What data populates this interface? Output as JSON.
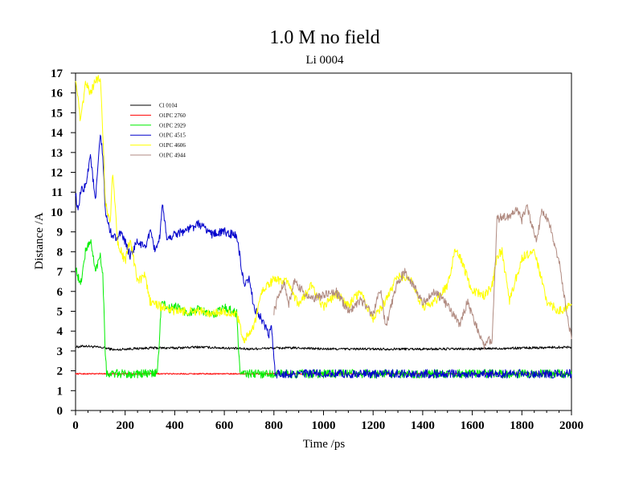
{
  "chart_data": {
    "type": "line",
    "title": "1.0 M no field",
    "subtitle": "Li 0004",
    "xlabel": "Time /ps",
    "ylabel": "Distance /A",
    "xlim": [
      0,
      2000
    ],
    "ylim": [
      0,
      17
    ],
    "x_ticks": [
      "0",
      "200",
      "400",
      "600",
      "800",
      "1000",
      "1200",
      "1400",
      "1600",
      "1800",
      "2000"
    ],
    "y_ticks": [
      "0",
      "1",
      "2",
      "3",
      "4",
      "5",
      "6",
      "7",
      "8",
      "9",
      "10",
      "11",
      "12",
      "13",
      "14",
      "15",
      "16",
      "17"
    ],
    "legend_position": "top-left",
    "series": [
      {
        "name": "Cl 0104",
        "color": "#000000",
        "x": [
          0,
          40,
          80,
          120,
          160,
          200,
          300,
          400,
          500,
          600,
          700,
          800,
          900,
          1000,
          1200,
          1400,
          1600,
          1800,
          2000
        ],
        "y": [
          3.2,
          3.25,
          3.2,
          3.15,
          3.05,
          3.1,
          3.15,
          3.15,
          3.2,
          3.15,
          3.1,
          3.15,
          3.15,
          3.1,
          3.1,
          3.1,
          3.1,
          3.15,
          3.2
        ]
      },
      {
        "name": "O1PC 2760",
        "color": "#ff0000",
        "x": [
          0,
          400,
          800,
          1200,
          1600,
          2000
        ],
        "y": [
          1.85,
          1.85,
          1.85,
          1.85,
          1.85,
          1.85
        ]
      },
      {
        "name": "O1PC 2929",
        "color": "#00ee00",
        "x": [
          0,
          20,
          40,
          60,
          80,
          100,
          110,
          120,
          125,
          130,
          200,
          300,
          330,
          340,
          345,
          350,
          380,
          400,
          450,
          500,
          550,
          600,
          650,
          660,
          665,
          670,
          700,
          750,
          800,
          1000,
          1400,
          2000
        ],
        "y": [
          7.2,
          6.3,
          8.0,
          8.6,
          7.0,
          7.9,
          6.8,
          3.0,
          1.9,
          1.85,
          1.85,
          1.85,
          1.9,
          4.0,
          5.3,
          5.4,
          5.1,
          5.3,
          4.9,
          5.1,
          4.8,
          5.2,
          4.9,
          2.5,
          1.9,
          1.85,
          1.85,
          1.85,
          1.85,
          1.85,
          1.85,
          1.85
        ]
      },
      {
        "name": "O1PC 4515",
        "color": "#0000cc",
        "x": [
          0,
          10,
          20,
          40,
          60,
          80,
          100,
          110,
          120,
          140,
          160,
          180,
          200,
          220,
          250,
          280,
          300,
          320,
          340,
          350,
          370,
          400,
          450,
          500,
          550,
          600,
          650,
          660,
          680,
          700,
          720,
          750,
          780,
          790,
          800,
          805,
          810,
          850,
          1000,
          1400,
          1800,
          2000
        ],
        "y": [
          11.0,
          9.9,
          11.0,
          11.3,
          12.9,
          10.5,
          13.9,
          12.8,
          10.0,
          9.0,
          8.7,
          8.9,
          8.5,
          7.8,
          8.5,
          8.2,
          9.0,
          8.1,
          8.7,
          10.3,
          8.6,
          8.9,
          9.1,
          9.4,
          8.9,
          9.0,
          8.8,
          8.0,
          6.2,
          6.6,
          5.2,
          4.6,
          3.8,
          4.3,
          2.5,
          1.85,
          1.85,
          1.85,
          1.85,
          1.85,
          1.85,
          1.85
        ]
      },
      {
        "name": "O1PC 4606",
        "color": "#ffff00",
        "x": [
          0,
          20,
          40,
          60,
          80,
          100,
          110,
          120,
          140,
          150,
          170,
          200,
          220,
          250,
          280,
          300,
          350,
          400,
          450,
          500,
          550,
          600,
          650,
          680,
          700,
          720,
          750,
          800,
          850,
          900,
          950,
          1000,
          1050,
          1100,
          1150,
          1200,
          1250,
          1300,
          1350,
          1400,
          1450,
          1500,
          1530,
          1550,
          1600,
          1650,
          1680,
          1700,
          1720,
          1750,
          1800,
          1850,
          1900,
          1950,
          2000
        ],
        "y": [
          16.8,
          14.5,
          16.5,
          16.0,
          16.6,
          16.8,
          14.0,
          10.5,
          9.5,
          12.0,
          8.5,
          7.5,
          8.6,
          6.5,
          6.8,
          5.5,
          5.2,
          5.0,
          5.0,
          5.0,
          4.9,
          5.0,
          4.8,
          3.5,
          3.9,
          4.2,
          6.0,
          6.6,
          6.5,
          5.3,
          6.3,
          5.2,
          5.9,
          5.3,
          6.0,
          4.6,
          5.5,
          6.8,
          6.6,
          5.2,
          5.5,
          6.3,
          8.0,
          7.8,
          6.0,
          5.8,
          6.3,
          7.8,
          8.0,
          5.5,
          7.7,
          8.1,
          5.5,
          5.0,
          5.3
        ]
      },
      {
        "name": "O1PC 4944",
        "color": "#b08a80",
        "x": [
          800,
          820,
          840,
          860,
          880,
          900,
          950,
          1000,
          1050,
          1100,
          1150,
          1200,
          1230,
          1250,
          1300,
          1330,
          1350,
          1400,
          1450,
          1500,
          1550,
          1580,
          1600,
          1630,
          1650,
          1660,
          1680,
          1700,
          1720,
          1750,
          1780,
          1800,
          1820,
          1840,
          1860,
          1880,
          1900,
          1920,
          1950,
          1980,
          2000
        ],
        "y": [
          5.0,
          5.8,
          6.5,
          5.3,
          6.5,
          6.2,
          5.6,
          5.8,
          6.0,
          5.0,
          5.6,
          4.8,
          6.2,
          4.2,
          6.5,
          7.0,
          6.6,
          5.4,
          6.0,
          5.3,
          4.3,
          5.5,
          4.8,
          3.8,
          3.2,
          3.6,
          3.5,
          9.6,
          9.8,
          9.7,
          10.2,
          9.6,
          10.3,
          9.3,
          8.6,
          10.0,
          9.8,
          9.0,
          7.5,
          5.0,
          3.6
        ]
      }
    ]
  }
}
